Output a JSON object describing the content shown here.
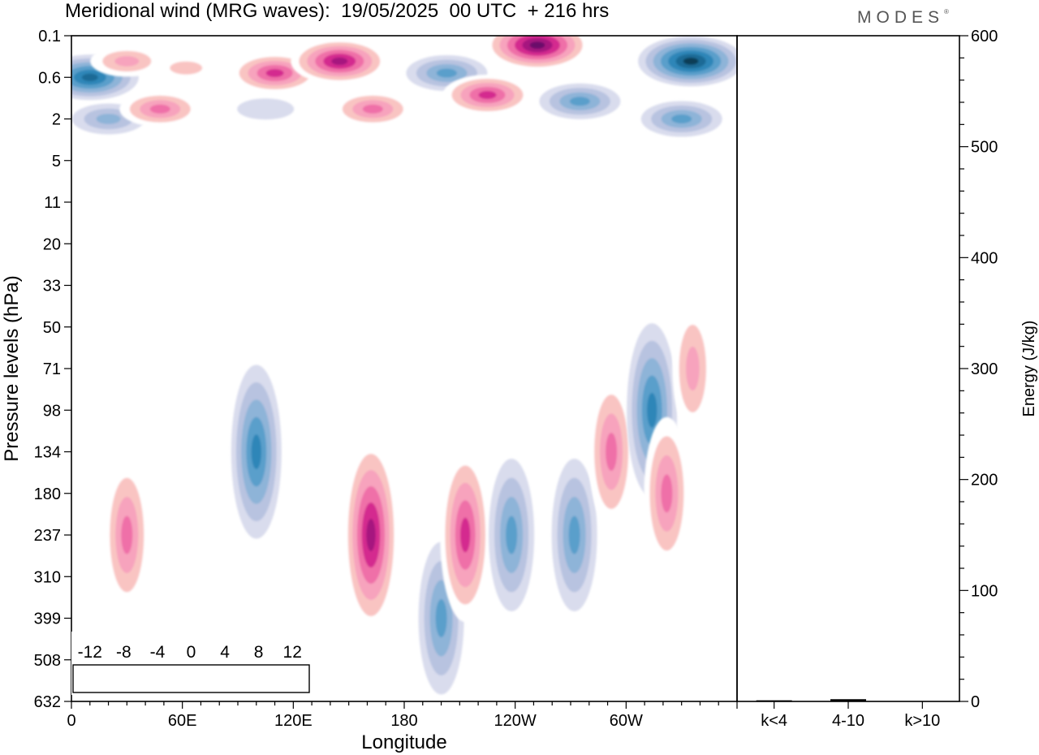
{
  "page": {
    "title": "Meridional wind (MRG waves):  19/05/2025  00 UTC  + 216 hrs",
    "brand": "MODES",
    "brand_mark": "®"
  },
  "chart_data": [
    {
      "type": "heatmap",
      "title": "Meridional wind (MRG waves):  19/05/2025  00 UTC  + 216 hrs",
      "xlabel": "Longitude",
      "ylabel": "Pressure levels (hPa)",
      "x_ticks": [
        "0",
        "60E",
        "120E",
        "180",
        "120W",
        "60W"
      ],
      "y_ticks": [
        "0.1",
        "0.6",
        "2",
        "5",
        "11",
        "20",
        "33",
        "50",
        "71",
        "98",
        "134",
        "180",
        "237",
        "310",
        "399",
        "508",
        "632"
      ],
      "colorbar": {
        "labels": [
          "-12",
          "-8",
          "-4",
          "0",
          "4",
          "8",
          "12"
        ],
        "levels": [
          -14,
          -12,
          -10,
          -8,
          -6,
          -4,
          -2,
          2,
          4,
          6,
          8,
          10,
          12,
          14
        ],
        "colors": [
          "#0b3d57",
          "#1a6a96",
          "#2f86b8",
          "#5a9fcb",
          "#8eb4d8",
          "#b8c3e0",
          "#d9dced",
          "#ffffff",
          "#f9c4c2",
          "#f7a3bd",
          "#ef6fa8",
          "#d42b8f",
          "#a6157f",
          "#6a0f6b"
        ]
      },
      "features": [
        {
          "lon": 10,
          "level": "0.6",
          "value": -12
        },
        {
          "lon": 20,
          "level": "2",
          "value": -6
        },
        {
          "lon": 30,
          "level": "0.3",
          "value": 6
        },
        {
          "lon": 48,
          "level": "1.5",
          "value": 8
        },
        {
          "lon": 62,
          "level": "0.4",
          "value": 4
        },
        {
          "lon": 105,
          "level": "1.5",
          "value": -2
        },
        {
          "lon": 110,
          "level": "0.5",
          "value": 10
        },
        {
          "lon": 145,
          "level": "0.3",
          "value": 12
        },
        {
          "lon": 163,
          "level": "1.5",
          "value": 8
        },
        {
          "lon": 203,
          "level": "0.5",
          "value": -8
        },
        {
          "lon": 225,
          "level": "1",
          "value": 10
        },
        {
          "lon": 252,
          "level": "0.15",
          "value": 14
        },
        {
          "lon": 275,
          "level": "1.2",
          "value": -8
        },
        {
          "lon": 335,
          "level": "0.3",
          "value": -14
        },
        {
          "lon": 330,
          "level": "2",
          "value": -8
        },
        {
          "lon": 30,
          "level": "237",
          "value": 8
        },
        {
          "lon": 100,
          "level": "134",
          "value": -10
        },
        {
          "lon": 162,
          "level": "237",
          "value": 12
        },
        {
          "lon": 200,
          "level": "399",
          "value": -8
        },
        {
          "lon": 213,
          "level": "237",
          "value": 10
        },
        {
          "lon": 238,
          "level": "237",
          "value": -8
        },
        {
          "lon": 272,
          "level": "237",
          "value": -8
        },
        {
          "lon": 292,
          "level": "134",
          "value": 8
        },
        {
          "lon": 314,
          "level": "98",
          "value": -10
        },
        {
          "lon": 322,
          "level": "180",
          "value": 8
        },
        {
          "lon": 336,
          "level": "71",
          "value": 6
        }
      ]
    },
    {
      "type": "bar",
      "categories": [
        "k<4",
        "4-10",
        "k>10"
      ],
      "values": [
        1,
        2,
        0
      ],
      "ylabel": "Energy (J/kg)",
      "ylim": [
        0,
        600
      ],
      "y_ticks": [
        "0",
        "100",
        "200",
        "300",
        "400",
        "500",
        "600"
      ]
    }
  ]
}
